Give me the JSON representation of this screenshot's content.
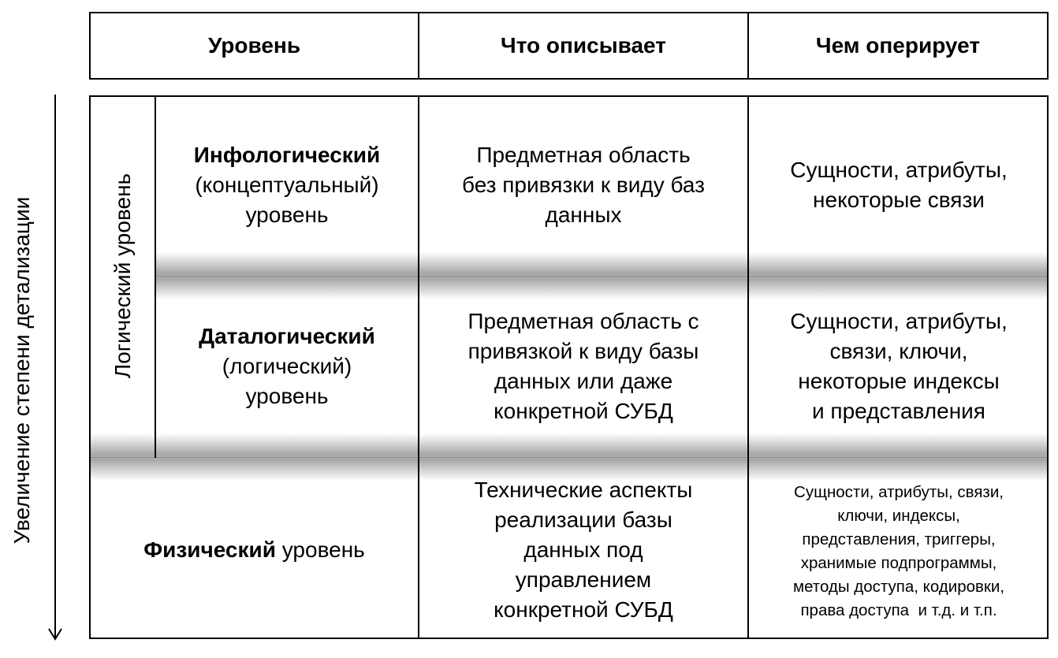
{
  "header": {
    "columns": [
      "Уровень",
      "Что описывает",
      "Чем оперирует"
    ]
  },
  "axis_label": "Увеличение степени детализации",
  "group_label": "Логический уровень",
  "rows": [
    {
      "level_bold": "Инфологический",
      "level_rest": [
        "(концептуальный)",
        "уровень"
      ],
      "describes": [
        "Предметная область",
        "без привязки к виду баз",
        "данных"
      ],
      "operates": [
        "Сущности, атрибуты,",
        "некоторые связи"
      ]
    },
    {
      "level_bold": "Даталогический",
      "level_rest": [
        "(логический)",
        "уровень"
      ],
      "describes": [
        "Предметная область с",
        "привязкой к виду базы",
        "данных или даже",
        "конкретной СУБД"
      ],
      "operates": [
        "Сущности, атрибуты,",
        "связи, ключи,",
        "некоторые индексы",
        "и представления"
      ]
    },
    {
      "level_bold": "Физический",
      "level_rest": [
        " уровень"
      ],
      "describes": [
        "Технические аспекты",
        "реализации базы",
        "данных под",
        "управлением",
        "конкретной СУБД"
      ],
      "operates": [
        "Сущности, атрибуты, связи,",
        "ключи, индексы,",
        "представления, триггеры,",
        "хранимые подпрограммы,",
        "методы доступа, кодировки,",
        "права доступа  и т.д. и т.п."
      ]
    }
  ]
}
